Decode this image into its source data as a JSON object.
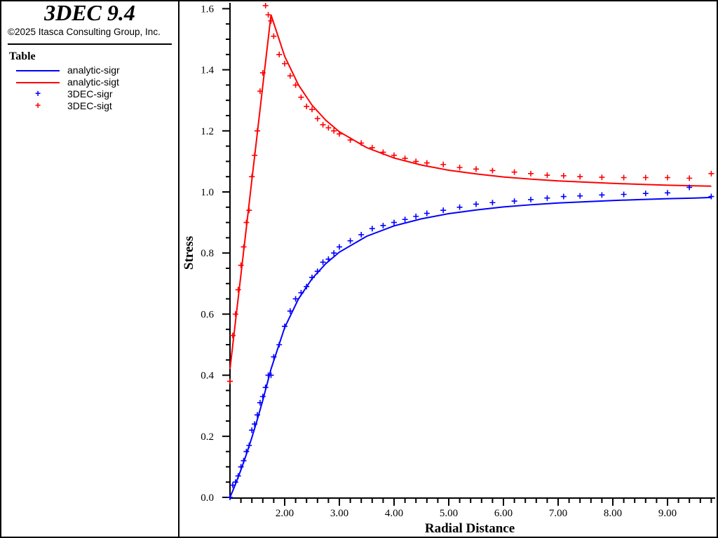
{
  "header": {
    "title": "3DEC 9.4",
    "copyright": "©2025 Itasca Consulting Group, Inc."
  },
  "legend": {
    "title": "Table",
    "items": [
      {
        "label": "analytic-sigr",
        "kind": "line",
        "color": "#0000ff"
      },
      {
        "label": "analytic-sigt",
        "kind": "line",
        "color": "#ff0000"
      },
      {
        "label": "3DEC-sigr",
        "kind": "marker",
        "color": "#0000ff"
      },
      {
        "label": "3DEC-sigt",
        "kind": "marker",
        "color": "#ff0000"
      }
    ]
  },
  "chart_data": {
    "type": "line",
    "title": "",
    "xlabel": "Radial Distance",
    "ylabel": "Stress",
    "xlim": [
      1.0,
      9.8
    ],
    "ylim": [
      0.0,
      1.6
    ],
    "xticks": [
      "2.00",
      "3.00",
      "4.00",
      "5.00",
      "6.00",
      "7.00",
      "8.00",
      "9.00"
    ],
    "yticks": [
      "0.0",
      "0.2",
      "0.4",
      "0.6",
      "0.8",
      "1.0",
      "1.2",
      "1.4",
      "1.6"
    ],
    "grid": false,
    "legend_placement": "left-panel",
    "analytic_x": [
      1.0,
      1.1,
      1.2,
      1.3,
      1.4,
      1.5,
      1.6,
      1.75,
      2.0,
      2.25,
      2.5,
      2.75,
      3.0,
      3.5,
      4.0,
      4.5,
      5.0,
      5.5,
      6.0,
      6.5,
      7.0,
      7.5,
      8.0,
      8.5,
      9.0,
      9.5,
      9.8
    ],
    "points_x": [
      1.0,
      1.05,
      1.1,
      1.15,
      1.2,
      1.25,
      1.3,
      1.35,
      1.4,
      1.45,
      1.5,
      1.55,
      1.6,
      1.65,
      1.7,
      1.75,
      1.8,
      1.9,
      2.0,
      2.1,
      2.2,
      2.3,
      2.4,
      2.5,
      2.6,
      2.7,
      2.8,
      2.9,
      3.0,
      3.2,
      3.4,
      3.6,
      3.8,
      4.0,
      4.2,
      4.4,
      4.6,
      4.9,
      5.2,
      5.5,
      5.8,
      6.2,
      6.5,
      6.8,
      7.1,
      7.4,
      7.8,
      8.2,
      8.6,
      9.0,
      9.4,
      9.8
    ],
    "series": [
      {
        "name": "analytic-sigr",
        "type": "line",
        "color": "#0000ff",
        "values": [
          0,
          0.043,
          0.09,
          0.141,
          0.196,
          0.255,
          0.318,
          0.42,
          0.556,
          0.649,
          0.716,
          0.765,
          0.803,
          0.855,
          0.889,
          0.912,
          0.929,
          0.941,
          0.951,
          0.958,
          0.964,
          0.968,
          0.972,
          0.975,
          0.978,
          0.98,
          0.982
        ]
      },
      {
        "name": "analytic-sigt",
        "type": "line",
        "color": "#ff0000",
        "values": [
          0.42,
          0.575,
          0.729,
          0.884,
          1.039,
          1.193,
          1.348,
          1.58,
          1.444,
          1.351,
          1.284,
          1.235,
          1.197,
          1.145,
          1.111,
          1.088,
          1.071,
          1.059,
          1.049,
          1.042,
          1.036,
          1.032,
          1.028,
          1.025,
          1.022,
          1.02,
          1.019
        ]
      },
      {
        "name": "3DEC-sigr",
        "type": "scatter",
        "color": "#0000ff",
        "values": [
          0.0,
          0.04,
          0.05,
          0.07,
          0.1,
          0.12,
          0.15,
          0.17,
          0.22,
          0.24,
          0.27,
          0.31,
          0.33,
          0.36,
          0.4,
          0.4,
          0.46,
          0.5,
          0.56,
          0.61,
          0.65,
          0.67,
          0.69,
          0.72,
          0.74,
          0.77,
          0.78,
          0.8,
          0.82,
          0.84,
          0.86,
          0.88,
          0.89,
          0.9,
          0.91,
          0.92,
          0.93,
          0.94,
          0.95,
          0.96,
          0.965,
          0.97,
          0.975,
          0.98,
          0.985,
          0.987,
          0.99,
          0.992,
          0.995,
          0.997,
          1.015,
          0.985
        ]
      },
      {
        "name": "3DEC-sigt",
        "type": "scatter",
        "color": "#ff0000",
        "values": [
          0.38,
          0.53,
          0.6,
          0.68,
          0.76,
          0.82,
          0.9,
          0.94,
          1.05,
          1.12,
          1.2,
          1.33,
          1.39,
          1.61,
          1.58,
          1.56,
          1.51,
          1.45,
          1.42,
          1.38,
          1.35,
          1.31,
          1.28,
          1.27,
          1.24,
          1.22,
          1.21,
          1.2,
          1.19,
          1.17,
          1.16,
          1.145,
          1.13,
          1.12,
          1.11,
          1.1,
          1.095,
          1.09,
          1.08,
          1.075,
          1.07,
          1.065,
          1.06,
          1.055,
          1.053,
          1.05,
          1.048,
          1.047,
          1.047,
          1.047,
          1.045,
          1.06
        ]
      }
    ]
  }
}
